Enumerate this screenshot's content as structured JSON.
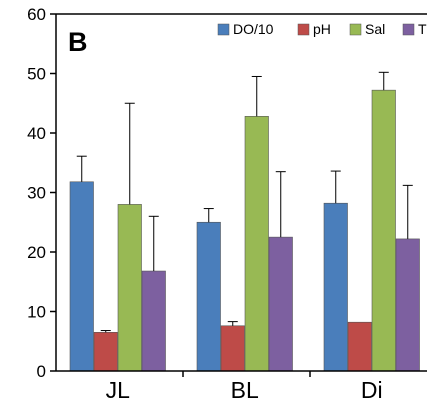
{
  "chart_data": {
    "type": "bar",
    "panel_label": "B",
    "title": "",
    "xlabel": "",
    "ylabel": "",
    "ylim": [
      0,
      60
    ],
    "yticks": [
      0,
      10,
      20,
      30,
      40,
      50,
      60
    ],
    "grid": false,
    "legend_position": "top",
    "categories": [
      "JL",
      "BL",
      "Di"
    ],
    "error_bars": "upper",
    "series": [
      {
        "name": "DO/10",
        "color": "#4a7ebb",
        "values": [
          31.8,
          25.0,
          28.2
        ],
        "errors": [
          4.3,
          2.3,
          5.4
        ]
      },
      {
        "name": "pH",
        "color": "#be4b48",
        "values": [
          6.5,
          7.6,
          8.2
        ],
        "errors": [
          0.3,
          0.7,
          0.0
        ]
      },
      {
        "name": "Sal",
        "color": "#98b954",
        "values": [
          28.0,
          42.8,
          47.2
        ],
        "errors": [
          17.0,
          6.7,
          3.0
        ]
      },
      {
        "name": "T",
        "color": "#7d60a0",
        "values": [
          16.8,
          22.5,
          22.2
        ],
        "errors": [
          9.2,
          11.0,
          9.0
        ]
      }
    ]
  }
}
